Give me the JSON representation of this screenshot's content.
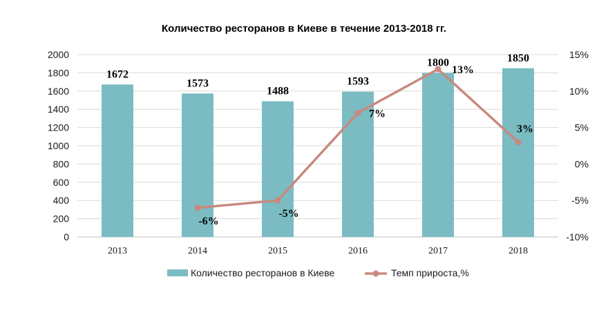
{
  "chart_data": {
    "type": "bar",
    "title": "Количество ресторанов в Киеве в течение 2013-2018 гг.",
    "categories": [
      "2013",
      "2014",
      "2015",
      "2016",
      "2017",
      "2018"
    ],
    "series": [
      {
        "name": "Количество ресторанов в Киеве",
        "type": "bar",
        "axis": "left",
        "color": "#7bbcc3",
        "values": [
          1672,
          1573,
          1488,
          1593,
          1800,
          1850
        ],
        "labels": [
          "1672",
          "1573",
          "1488",
          "1593",
          "1800",
          "1850"
        ]
      },
      {
        "name": "Темп прироста,%",
        "type": "line",
        "axis": "right",
        "color": "#c8897f",
        "values": [
          null,
          -6,
          -5,
          7,
          13,
          3
        ],
        "labels": [
          "",
          "-6%",
          "-5%",
          "7%",
          "13%",
          "3%"
        ]
      }
    ],
    "y_left": {
      "ylim": [
        0,
        2000
      ],
      "ticks": [
        0,
        200,
        400,
        600,
        800,
        1000,
        1200,
        1400,
        1600,
        1800,
        2000
      ],
      "tick_labels": [
        "0",
        "200",
        "400",
        "600",
        "800",
        "1000",
        "1200",
        "1400",
        "1600",
        "1800",
        "2000"
      ]
    },
    "y_right": {
      "ylim": [
        -10,
        15
      ],
      "ticks": [
        -10,
        -5,
        0,
        5,
        10,
        15
      ],
      "tick_labels": [
        "-10%",
        "-5%",
        "0%",
        "5%",
        "10%",
        "15%"
      ]
    },
    "grid": true,
    "legend_position": "bottom"
  }
}
